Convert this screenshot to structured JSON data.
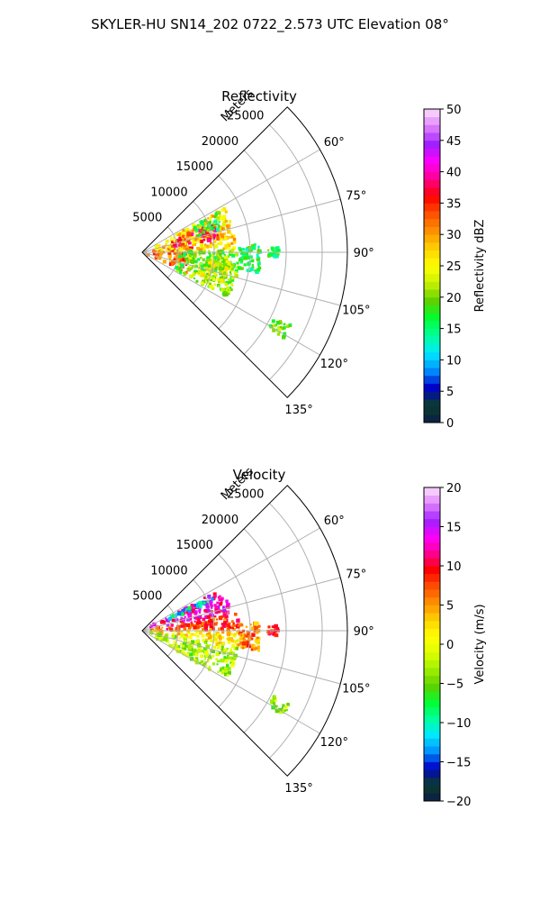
{
  "figure": {
    "title": "SKYLER-HU  SN14_202  0722_2.573 UTC Elevation 08°"
  },
  "chart_data": [
    {
      "type": "polar-sector",
      "title": "Reflectivity",
      "radial_label": "Meters",
      "radial_ticks": [
        5000,
        10000,
        15000,
        20000,
        25000
      ],
      "radial_tick_labels": [
        "5000",
        "10000",
        "15000",
        "20000",
        "25000"
      ],
      "r_max": 28500,
      "theta_range_deg": [
        45,
        135
      ],
      "theta_ticks": [
        60,
        75,
        90,
        105,
        120,
        135
      ],
      "theta_tick_labels": [
        "60°",
        "75°",
        "90°",
        "105°",
        "120°",
        "135°"
      ],
      "grid": true,
      "colorbar": {
        "label": "Reflectivity dBZ",
        "vmin": 0,
        "vmax": 50,
        "ticks": [
          0,
          5,
          10,
          15,
          20,
          25,
          30,
          35,
          40,
          45,
          50
        ],
        "tick_labels": [
          "0",
          "5",
          "10",
          "15",
          "20",
          "25",
          "30",
          "35",
          "40",
          "45",
          "50"
        ],
        "colormap": [
          "#0d1b4a",
          "#0a3d2a",
          "#0000c8",
          "#0090ff",
          "#00e8ff",
          "#00ff9c",
          "#00ff30",
          "#60d000",
          "#c8f000",
          "#ffff00",
          "#ffd000",
          "#ff9000",
          "#ff5000",
          "#ff0000",
          "#ff0090",
          "#ff00ff",
          "#a020ff",
          "#e080ff",
          "#fce0fc"
        ]
      },
      "echo_regions": [
        {
          "r_from": 0,
          "r_to": 7000,
          "theta_from": 80,
          "theta_to": 115,
          "value": 33
        },
        {
          "r_from": 2000,
          "r_to": 13000,
          "theta_from": 62,
          "theta_to": 88,
          "value": 27
        },
        {
          "r_from": 4000,
          "r_to": 11000,
          "theta_from": 68,
          "theta_to": 80,
          "value": 36
        },
        {
          "r_from": 5000,
          "r_to": 13500,
          "theta_from": 88,
          "theta_to": 118,
          "value": 20
        },
        {
          "r_from": 8000,
          "r_to": 12500,
          "theta_from": 96,
          "theta_to": 112,
          "value": 23
        },
        {
          "r_from": 8000,
          "r_to": 12000,
          "theta_from": 62,
          "theta_to": 74,
          "value": 18
        },
        {
          "r_from": 13500,
          "r_to": 16500,
          "theta_from": 86,
          "theta_to": 100,
          "value": 16
        },
        {
          "r_from": 17500,
          "r_to": 19000,
          "theta_from": 88,
          "theta_to": 92,
          "value": 17
        },
        {
          "r_from": 20500,
          "r_to": 23000,
          "theta_from": 116,
          "theta_to": 121,
          "value": 20
        }
      ]
    },
    {
      "type": "polar-sector",
      "title": "Velocity",
      "radial_label": "Meters",
      "radial_ticks": [
        5000,
        10000,
        15000,
        20000,
        25000
      ],
      "radial_tick_labels": [
        "5000",
        "10000",
        "15000",
        "20000",
        "25000"
      ],
      "r_max": 28500,
      "theta_range_deg": [
        45,
        135
      ],
      "theta_ticks": [
        60,
        75,
        90,
        105,
        120,
        135
      ],
      "theta_tick_labels": [
        "60°",
        "75°",
        "90°",
        "105°",
        "120°",
        "135°"
      ],
      "grid": true,
      "colorbar": {
        "label": "Velocity (m/s)",
        "vmin": -20,
        "vmax": 20,
        "ticks": [
          -20,
          -15,
          -10,
          -5,
          0,
          5,
          10,
          15,
          20
        ],
        "tick_labels": [
          "−20",
          "−15",
          "−10",
          "−5",
          "0",
          "5",
          "10",
          "15",
          "20"
        ],
        "colormap": [
          "#0d1b4a",
          "#0a3d2a",
          "#0000c8",
          "#0090ff",
          "#00e8ff",
          "#00ff9c",
          "#00ff30",
          "#60d000",
          "#a0f000",
          "#e0ff00",
          "#ffff00",
          "#ffd000",
          "#ff9000",
          "#ff5000",
          "#ff0000",
          "#ff0090",
          "#ff00ff",
          "#a020ff",
          "#e080ff",
          "#fce0fc"
        ]
      },
      "echo_regions": [
        {
          "r_from": 0,
          "r_to": 12500,
          "theta_from": 62,
          "theta_to": 78,
          "value": 13
        },
        {
          "r_from": 4000,
          "r_to": 11000,
          "theta_from": 63,
          "theta_to": 68,
          "value": -11
        },
        {
          "r_from": 0,
          "r_to": 13500,
          "theta_from": 78,
          "theta_to": 90,
          "value": 8
        },
        {
          "r_from": 0,
          "r_to": 13500,
          "theta_from": 90,
          "theta_to": 100,
          "value": 2
        },
        {
          "r_from": 0,
          "r_to": 13500,
          "theta_from": 100,
          "theta_to": 120,
          "value": -3
        },
        {
          "r_from": 13500,
          "r_to": 16500,
          "theta_from": 86,
          "theta_to": 100,
          "value": 6
        },
        {
          "r_from": 17500,
          "r_to": 19000,
          "theta_from": 88,
          "theta_to": 92,
          "value": 9
        },
        {
          "r_from": 20500,
          "r_to": 23000,
          "theta_from": 116,
          "theta_to": 121,
          "value": -3
        }
      ]
    }
  ]
}
